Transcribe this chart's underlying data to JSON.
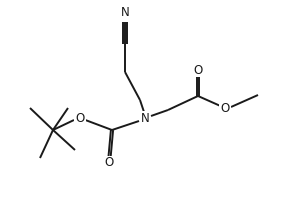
{
  "bg_color": "#ffffff",
  "line_color": "#1a1a1a",
  "line_width": 1.4,
  "font_size": 8.5,
  "figsize": [
    2.85,
    2.18
  ],
  "dpi": 100,
  "xlim": [
    0,
    285
  ],
  "ylim": [
    0,
    218
  ]
}
